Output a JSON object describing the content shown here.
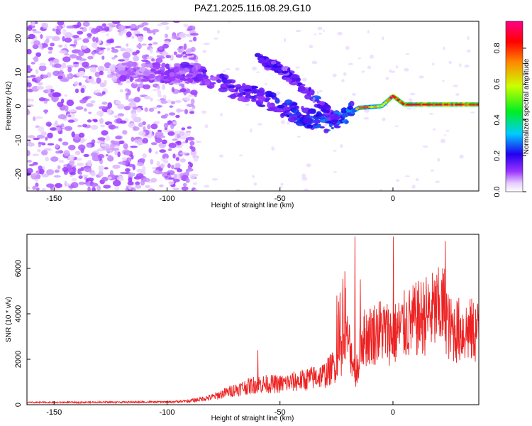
{
  "title": "PAZ1.2025.116.08.29.G10",
  "colors": {
    "snr_line": "#ee2222",
    "background": "#ffffff"
  },
  "chart_data": [
    {
      "type": "heatmap",
      "xlabel": "Height of straight line (km)",
      "ylabel": "Frequency (Hz)",
      "xlim": [
        -162,
        38
      ],
      "ylim": [
        -25,
        25
      ],
      "xticks": [
        -150,
        -100,
        -50,
        0
      ],
      "yticks": [
        -20,
        -10,
        0,
        10,
        20
      ],
      "colorbar": {
        "label": "Normalized spectral amplitude",
        "range": [
          0,
          0.95
        ],
        "ticks": [
          0.0,
          0.2,
          0.4,
          0.6,
          0.8
        ]
      },
      "ridge": [
        {
          "x": -120,
          "y": 10
        },
        {
          "x": -108,
          "y": 10
        },
        {
          "x": -100,
          "y": 9.5
        },
        {
          "x": -90,
          "y": 10
        },
        {
          "x": -80,
          "y": 8
        },
        {
          "x": -70,
          "y": 5
        },
        {
          "x": -60,
          "y": 3
        },
        {
          "x": -50,
          "y": 0
        },
        {
          "x": -40,
          "y": -3
        },
        {
          "x": -30,
          "y": -5
        },
        {
          "x": -22,
          "y": -3
        },
        {
          "x": -15,
          "y": -0.5
        },
        {
          "x": -5,
          "y": 0
        },
        {
          "x": 0,
          "y": 3
        },
        {
          "x": 5,
          "y": 0.5
        },
        {
          "x": 15,
          "y": 0.5
        },
        {
          "x": 25,
          "y": 0.5
        },
        {
          "x": 38,
          "y": 0.5
        }
      ],
      "secondary_ridge": [
        {
          "x": -60,
          "y": 14
        },
        {
          "x": -50,
          "y": 11
        },
        {
          "x": -40,
          "y": 6
        },
        {
          "x": -32,
          "y": 0
        },
        {
          "x": -25,
          "y": -4
        }
      ]
    },
    {
      "type": "line",
      "xlabel": "Height of straight line (km)",
      "ylabel": "SNR (10 * v/v)",
      "xlim": [
        -162,
        38
      ],
      "ylim": [
        0,
        7500
      ],
      "xticks": [
        -150,
        -100,
        -50,
        0
      ],
      "yticks": [
        0,
        2000,
        4000,
        6000
      ],
      "envelope": [
        {
          "x": -162,
          "y": 120
        },
        {
          "x": -100,
          "y": 150
        },
        {
          "x": -90,
          "y": 200
        },
        {
          "x": -80,
          "y": 400
        },
        {
          "x": -70,
          "y": 800
        },
        {
          "x": -60,
          "y": 1100
        },
        {
          "x": -50,
          "y": 1100
        },
        {
          "x": -40,
          "y": 1300
        },
        {
          "x": -30,
          "y": 1600
        },
        {
          "x": -25,
          "y": 2200
        },
        {
          "x": -20,
          "y": 3500
        },
        {
          "x": -16,
          "y": 1500
        },
        {
          "x": -14,
          "y": 3500
        },
        {
          "x": -5,
          "y": 4000
        },
        {
          "x": 0,
          "y": 3700
        },
        {
          "x": 5,
          "y": 4200
        },
        {
          "x": 15,
          "y": 4800
        },
        {
          "x": 23,
          "y": 5200
        },
        {
          "x": 25,
          "y": 4000
        },
        {
          "x": 38,
          "y": 3900
        }
      ],
      "spikes": [
        {
          "x": -60,
          "y": 2400
        },
        {
          "x": -17,
          "y": 7400
        },
        {
          "x": 0,
          "y": 7400
        },
        {
          "x": 23,
          "y": 7200
        },
        {
          "x": -25,
          "y": 4800
        }
      ]
    }
  ]
}
